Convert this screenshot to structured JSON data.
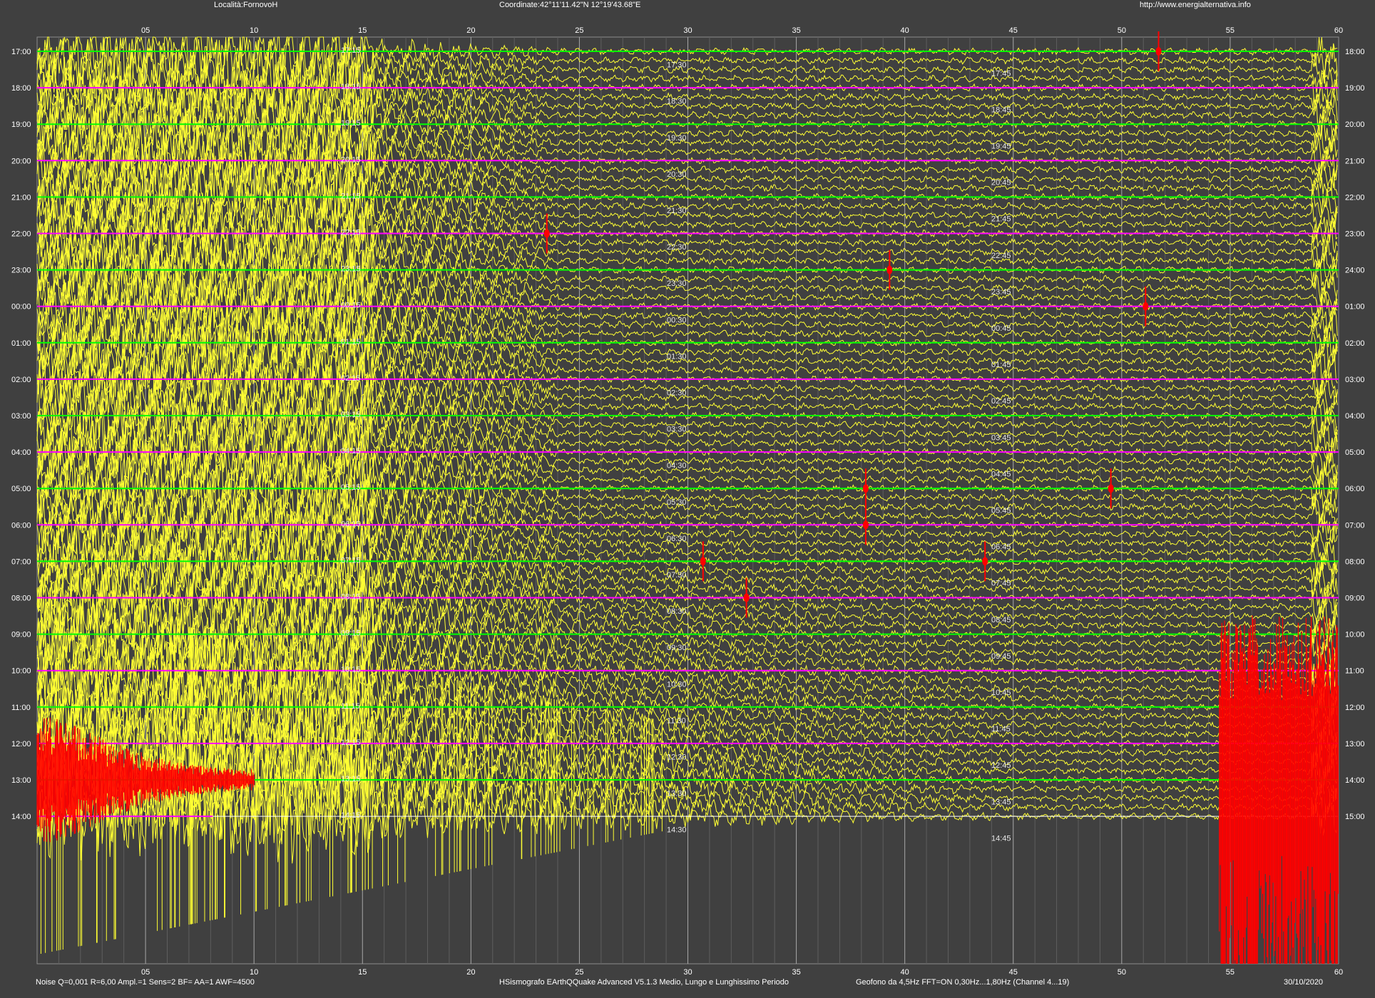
{
  "header": {
    "location": "Località:FornovoH",
    "coordinates": "Coordinate:42°11'11.42\"N  12°19'43.68\"E",
    "website": "http://www.energialternativa.info"
  },
  "footer": {
    "settings": "Noise Q=0,001 R=6,00 Ampl.=1 Sens=2 BF= AA=1 AWF=4500",
    "software": "HSismografo  EArthQQuake Advanced V5.1.3  Medio, Lungo e Lunghissimo Periodo",
    "sensor": "Geofono da 4,5Hz FFT=ON 0,30Hz...1,80Hz      (Channel 4...19)",
    "date": "30/10/2020"
  },
  "colors": {
    "background": "#404040",
    "trace": "#ffff33",
    "baseline_a": "#00ff00",
    "baseline_b": "#ff00ff",
    "event": "#ff0000",
    "grid": "#8c8c8c",
    "text": "#ffffff"
  },
  "chart_data": {
    "type": "line",
    "title": "",
    "xlabel": "",
    "ylabel": "",
    "xlim": [
      0,
      60
    ],
    "x_ticks": [
      "05",
      "10",
      "15",
      "20",
      "25",
      "30",
      "35",
      "40",
      "45",
      "50",
      "55",
      "60"
    ],
    "grid": true,
    "y_labels_left": [
      "17:00",
      "18:00",
      "19:00",
      "20:00",
      "21:00",
      "22:00",
      "23:00",
      "00:00",
      "01:00",
      "02:00",
      "03:00",
      "04:00",
      "05:00",
      "06:00",
      "07:00",
      "08:00",
      "09:00",
      "10:00",
      "11:00",
      "12:00",
      "13:00",
      "14:00"
    ],
    "y_labels_right": [
      "18:00",
      "19:00",
      "20:00",
      "21:00",
      "22:00",
      "23:00",
      "24:00",
      "01:00",
      "02:00",
      "03:00",
      "04:00",
      "05:00",
      "06:00",
      "07:00",
      "08:00",
      "09:00",
      "10:00",
      "11:00",
      "12:00",
      "13:00",
      "14:00",
      "15:00"
    ],
    "quarter_labels": {
      "q15": [
        "17:15",
        "18:15",
        "19:15",
        "20:15",
        "21:15",
        "22:15",
        "23:15",
        "00:15",
        "01:15",
        "02:15",
        "03:15",
        "04:15",
        "05:15",
        "06:15",
        "07:15",
        "08:15",
        "09:15",
        "10:15",
        "11:15",
        "12:15",
        "13:15",
        "14:15"
      ],
      "q30": [
        "17:30",
        "18:30",
        "19:30",
        "20:30",
        "21:30",
        "22:30",
        "23:30",
        "00:30",
        "01:30",
        "02:30",
        "03:30",
        "04:30",
        "05:30",
        "06:30",
        "07:30",
        "08:30",
        "09:30",
        "10:30",
        "11:30",
        "12:30",
        "13:30",
        "14:30"
      ],
      "q45": [
        "17:45",
        "18:45",
        "19:45",
        "20:45",
        "21:45",
        "22:45",
        "23:45",
        "00:45",
        "01:45",
        "02:45",
        "03:45",
        "04:45",
        "05:45",
        "06:45",
        "07:45",
        "08:45",
        "09:45",
        "10:45",
        "11:45",
        "12:45",
        "13:45",
        "14:45"
      ]
    },
    "events": [
      {
        "hour": "13:00",
        "minute_start": 0,
        "minute_end": 10,
        "note": "large red event at start of 13:00 line"
      },
      {
        "hour": "12:00",
        "minute_start": 54.5,
        "minute_end": 60,
        "note": "large red event at end of 12:00 line"
      },
      {
        "hour": "05:00",
        "minute": 38.2
      },
      {
        "hour": "06:00",
        "minute": 38.2
      },
      {
        "hour": "07:00",
        "minute": 30.7
      },
      {
        "hour": "07:00",
        "minute": 43.7
      },
      {
        "hour": "08:00",
        "minute": 32.7
      },
      {
        "hour": "00:00",
        "minute": 51.1
      },
      {
        "hour": "05:00",
        "minute": 49.5
      },
      {
        "hour": "22:00",
        "minute": 23.5
      },
      {
        "hour": "23:00",
        "minute": 39.3
      },
      {
        "hour": "17:00",
        "minute": 51.7
      }
    ]
  }
}
